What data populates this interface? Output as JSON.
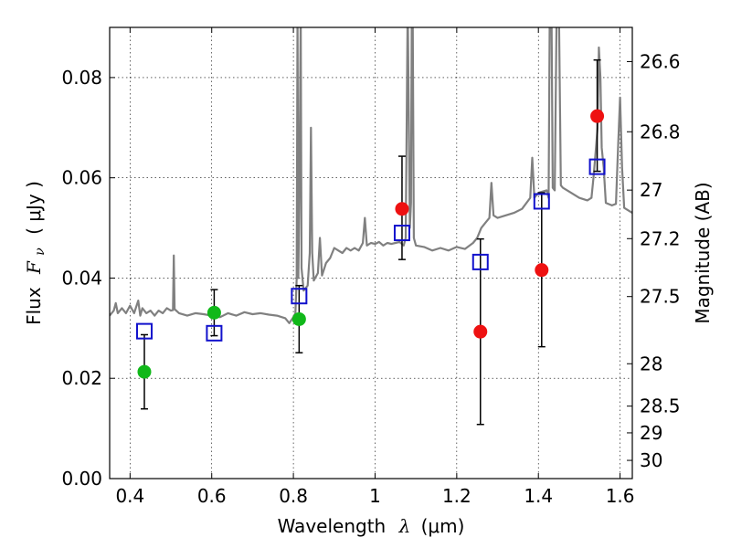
{
  "chart_data": {
    "type": "scatter",
    "xlabel_text": "Wavelength",
    "xlabel_symbol": "λ",
    "xlabel_unit": "(μm)",
    "ylabel_text": "Flux",
    "ylabel_symbol": "F",
    "ylabel_sub": "ν",
    "ylabel_unit": "( μJy )",
    "y2label": "Magnitude (AB)",
    "xlim": [
      0.35,
      1.63
    ],
    "ylim": [
      0.0,
      0.09
    ],
    "grid": true,
    "x_ticks": [
      {
        "value": 0.4,
        "label": "0.4"
      },
      {
        "value": 0.6,
        "label": "0.6"
      },
      {
        "value": 0.8,
        "label": "0.8"
      },
      {
        "value": 1.0,
        "label": "1"
      },
      {
        "value": 1.2,
        "label": "1.2"
      },
      {
        "value": 1.4,
        "label": "1.4"
      },
      {
        "value": 1.6,
        "label": "1.6"
      }
    ],
    "y_ticks": [
      {
        "value": 0.0,
        "label": "0.00"
      },
      {
        "value": 0.02,
        "label": "0.02"
      },
      {
        "value": 0.04,
        "label": "0.04"
      },
      {
        "value": 0.06,
        "label": "0.06"
      },
      {
        "value": 0.08,
        "label": "0.08"
      }
    ],
    "mag_ticks": [
      {
        "value": 26.6,
        "label": "26.6"
      },
      {
        "value": 26.8,
        "label": "26.8"
      },
      {
        "value": 27.0,
        "label": "27"
      },
      {
        "value": 27.2,
        "label": "27.2"
      },
      {
        "value": 27.5,
        "label": "27.5"
      },
      {
        "value": 28.0,
        "label": "28"
      },
      {
        "value": 28.5,
        "label": "28.5"
      },
      {
        "value": 29.0,
        "label": "29"
      },
      {
        "value": 30.0,
        "label": "30"
      }
    ],
    "colors": {
      "green": "#11b81a",
      "red": "#ee1111",
      "model_box": "#1111cc",
      "spectrum": "#808080",
      "errorbar": "#000000"
    },
    "series": [
      {
        "marker": "circle",
        "color": "green",
        "points": [
          {
            "x": 0.435,
            "y": 0.0213,
            "yerr_low": 0.0139,
            "yerr_high": 0.0287
          },
          {
            "x": 0.606,
            "y": 0.0331,
            "yerr_low": 0.0285,
            "yerr_high": 0.0377
          },
          {
            "x": 0.814,
            "y": 0.0318,
            "yerr_low": 0.0251,
            "yerr_high": 0.0385
          }
        ]
      },
      {
        "marker": "circle",
        "color": "red",
        "points": [
          {
            "x": 1.066,
            "y": 0.0538,
            "yerr_low": 0.0437,
            "yerr_high": 0.0643
          },
          {
            "x": 1.258,
            "y": 0.0293,
            "yerr_low": 0.0108,
            "yerr_high": 0.0478
          },
          {
            "x": 1.408,
            "y": 0.0416,
            "yerr_low": 0.0263,
            "yerr_high": 0.057
          },
          {
            "x": 1.544,
            "y": 0.0723,
            "yerr_low": 0.0613,
            "yerr_high": 0.0835
          }
        ]
      },
      {
        "marker": "open-square",
        "color": "model_box",
        "points": [
          {
            "x": 0.435,
            "y": 0.0294
          },
          {
            "x": 0.606,
            "y": 0.029
          },
          {
            "x": 0.814,
            "y": 0.0364
          },
          {
            "x": 1.066,
            "y": 0.049
          },
          {
            "x": 1.258,
            "y": 0.0432
          },
          {
            "x": 1.408,
            "y": 0.0553
          },
          {
            "x": 1.544,
            "y": 0.0622
          }
        ]
      }
    ],
    "spectrum": [
      [
        0.35,
        0.0325
      ],
      [
        0.36,
        0.0335
      ],
      [
        0.365,
        0.035
      ],
      [
        0.37,
        0.033
      ],
      [
        0.38,
        0.034
      ],
      [
        0.39,
        0.033
      ],
      [
        0.4,
        0.0345
      ],
      [
        0.41,
        0.033
      ],
      [
        0.42,
        0.0355
      ],
      [
        0.425,
        0.0325
      ],
      [
        0.43,
        0.034
      ],
      [
        0.44,
        0.033
      ],
      [
        0.45,
        0.0335
      ],
      [
        0.46,
        0.0325
      ],
      [
        0.47,
        0.0335
      ],
      [
        0.48,
        0.033
      ],
      [
        0.49,
        0.034
      ],
      [
        0.5,
        0.0335
      ],
      [
        0.505,
        0.0336
      ],
      [
        0.507,
        0.0445
      ],
      [
        0.509,
        0.0338
      ],
      [
        0.52,
        0.033
      ],
      [
        0.54,
        0.0325
      ],
      [
        0.56,
        0.033
      ],
      [
        0.58,
        0.0328
      ],
      [
        0.6,
        0.0325
      ],
      [
        0.62,
        0.0322
      ],
      [
        0.64,
        0.033
      ],
      [
        0.66,
        0.0325
      ],
      [
        0.68,
        0.0332
      ],
      [
        0.7,
        0.0328
      ],
      [
        0.72,
        0.033
      ],
      [
        0.74,
        0.0327
      ],
      [
        0.76,
        0.0325
      ],
      [
        0.78,
        0.032
      ],
      [
        0.79,
        0.031
      ],
      [
        0.8,
        0.0322
      ],
      [
        0.805,
        0.033
      ],
      [
        0.808,
        0.04
      ],
      [
        0.81,
        0.093
      ],
      [
        0.812,
        0.04
      ],
      [
        0.815,
        0.06
      ],
      [
        0.818,
        0.0935
      ],
      [
        0.82,
        0.042
      ],
      [
        0.825,
        0.0375
      ],
      [
        0.83,
        0.038
      ],
      [
        0.835,
        0.0385
      ],
      [
        0.84,
        0.045
      ],
      [
        0.843,
        0.07
      ],
      [
        0.846,
        0.045
      ],
      [
        0.85,
        0.0395
      ],
      [
        0.86,
        0.041
      ],
      [
        0.865,
        0.048
      ],
      [
        0.87,
        0.0405
      ],
      [
        0.88,
        0.043
      ],
      [
        0.89,
        0.044
      ],
      [
        0.9,
        0.046
      ],
      [
        0.91,
        0.0455
      ],
      [
        0.92,
        0.045
      ],
      [
        0.93,
        0.046
      ],
      [
        0.94,
        0.0455
      ],
      [
        0.95,
        0.046
      ],
      [
        0.96,
        0.0455
      ],
      [
        0.97,
        0.047
      ],
      [
        0.975,
        0.052
      ],
      [
        0.98,
        0.0465
      ],
      [
        0.99,
        0.047
      ],
      [
        1.0,
        0.0468
      ],
      [
        1.01,
        0.0472
      ],
      [
        1.02,
        0.0465
      ],
      [
        1.03,
        0.047
      ],
      [
        1.04,
        0.0468
      ],
      [
        1.05,
        0.047
      ],
      [
        1.06,
        0.0472
      ],
      [
        1.07,
        0.0465
      ],
      [
        1.075,
        0.048
      ],
      [
        1.08,
        0.095
      ],
      [
        1.085,
        0.05
      ],
      [
        1.088,
        0.055
      ],
      [
        1.09,
        0.095
      ],
      [
        1.092,
        0.095
      ],
      [
        1.095,
        0.048
      ],
      [
        1.1,
        0.0465
      ],
      [
        1.12,
        0.0462
      ],
      [
        1.14,
        0.0455
      ],
      [
        1.16,
        0.046
      ],
      [
        1.18,
        0.0455
      ],
      [
        1.2,
        0.0462
      ],
      [
        1.22,
        0.0458
      ],
      [
        1.24,
        0.047
      ],
      [
        1.25,
        0.048
      ],
      [
        1.26,
        0.05
      ],
      [
        1.27,
        0.051
      ],
      [
        1.28,
        0.052
      ],
      [
        1.285,
        0.059
      ],
      [
        1.29,
        0.0525
      ],
      [
        1.3,
        0.052
      ],
      [
        1.32,
        0.0525
      ],
      [
        1.34,
        0.053
      ],
      [
        1.36,
        0.0538
      ],
      [
        1.38,
        0.056
      ],
      [
        1.385,
        0.064
      ],
      [
        1.39,
        0.056
      ],
      [
        1.4,
        0.057
      ],
      [
        1.42,
        0.0575
      ],
      [
        1.425,
        0.056
      ],
      [
        1.428,
        0.095
      ],
      [
        1.432,
        0.095
      ],
      [
        1.435,
        0.058
      ],
      [
        1.44,
        0.0575
      ],
      [
        1.445,
        0.095
      ],
      [
        1.45,
        0.095
      ],
      [
        1.455,
        0.0585
      ],
      [
        1.46,
        0.058
      ],
      [
        1.48,
        0.057
      ],
      [
        1.5,
        0.056
      ],
      [
        1.52,
        0.0555
      ],
      [
        1.53,
        0.056
      ],
      [
        1.535,
        0.06
      ],
      [
        1.54,
        0.065
      ],
      [
        1.545,
        0.07
      ],
      [
        1.548,
        0.086
      ],
      [
        1.552,
        0.08
      ],
      [
        1.555,
        0.066
      ],
      [
        1.56,
        0.062
      ],
      [
        1.565,
        0.055
      ],
      [
        1.58,
        0.0545
      ],
      [
        1.59,
        0.0548
      ],
      [
        1.595,
        0.066
      ],
      [
        1.6,
        0.076
      ],
      [
        1.605,
        0.062
      ],
      [
        1.61,
        0.054
      ],
      [
        1.62,
        0.0535
      ],
      [
        1.63,
        0.053
      ]
    ]
  }
}
